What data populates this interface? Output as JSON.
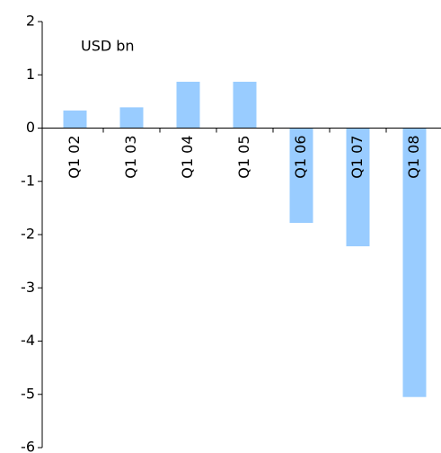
{
  "chart_data": {
    "type": "bar",
    "annotation": "USD bn",
    "categories": [
      "Q1 02",
      "Q1 03",
      "Q1 04",
      "Q1 05",
      "Q1 06",
      "Q1 07",
      "Q1 08"
    ],
    "values": [
      0.33,
      0.39,
      0.87,
      0.87,
      -1.78,
      -2.22,
      -5.05
    ],
    "color": "#99ccff",
    "ylim": [
      -6,
      2
    ],
    "yticks": [
      -6,
      -5,
      -4,
      -3,
      -2,
      -1,
      0,
      1,
      2
    ],
    "grid": false
  }
}
